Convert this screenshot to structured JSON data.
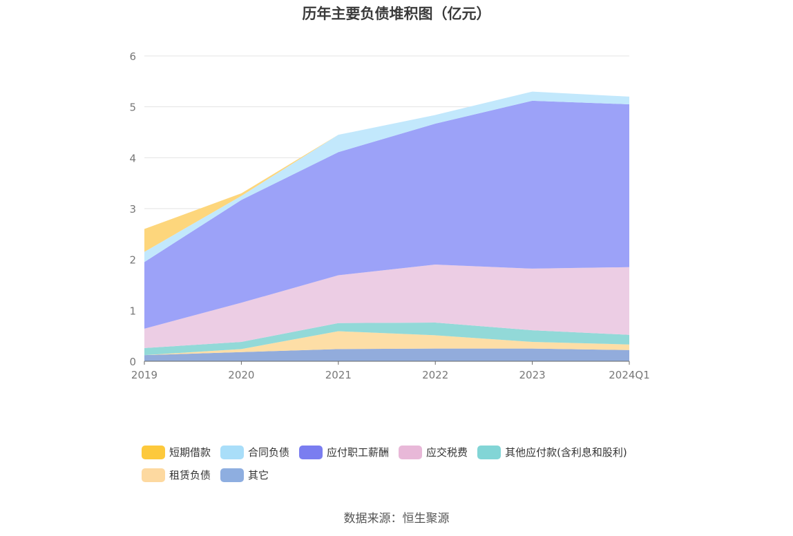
{
  "chart_data": {
    "type": "area",
    "stacked": true,
    "title": "历年主要负债堆积图（亿元）",
    "categories": [
      "2019",
      "2020",
      "2021",
      "2022",
      "2023",
      "2024Q1"
    ],
    "ylim": [
      0,
      6
    ],
    "yticks": [
      "0",
      "1",
      "2",
      "3",
      "4",
      "5",
      "6"
    ],
    "grid": true,
    "legend_position": "bottom",
    "series": [
      {
        "name": "其它",
        "color": "#92acdc",
        "values": [
          0.12,
          0.18,
          0.24,
          0.25,
          0.25,
          0.22
        ]
      },
      {
        "name": "租赁负债",
        "color": "#fddea6",
        "values": [
          0.0,
          0.06,
          0.35,
          0.26,
          0.13,
          0.11
        ]
      },
      {
        "name": "其他应付款(含利息和股利)",
        "color": "#92d9d8",
        "values": [
          0.14,
          0.14,
          0.16,
          0.25,
          0.23,
          0.19
        ]
      },
      {
        "name": "应交税费",
        "color": "#eccde4",
        "values": [
          0.38,
          0.77,
          0.94,
          1.14,
          1.21,
          1.33
        ]
      },
      {
        "name": "应付职工薪酬",
        "color": "#9ca2f8",
        "values": [
          1.31,
          2.02,
          2.42,
          2.77,
          3.3,
          3.2
        ]
      },
      {
        "name": "合同负债",
        "color": "#c2e8fc",
        "values": [
          0.2,
          0.08,
          0.34,
          0.17,
          0.18,
          0.15
        ]
      },
      {
        "name": "短期借款",
        "color": "#fdd67c",
        "values": [
          0.45,
          0.05,
          0.0,
          0.0,
          0.0,
          0.0
        ]
      }
    ]
  },
  "legend": {
    "rows": [
      [
        {
          "name": "短期借款",
          "color": "#fdc93c"
        },
        {
          "name": "合同负债",
          "color": "#a9def9"
        },
        {
          "name": "应付职工薪酬",
          "color": "#7a7df0"
        },
        {
          "name": "应交税费",
          "color": "#e8b8d8"
        },
        {
          "name": "其他应付款(含利息和股利)",
          "color": "#82d5d6"
        }
      ],
      [
        {
          "name": "租赁负债",
          "color": "#fdd9a0"
        },
        {
          "name": "其它",
          "color": "#8eaee0"
        }
      ]
    ]
  },
  "source": "数据来源：恒生聚源"
}
